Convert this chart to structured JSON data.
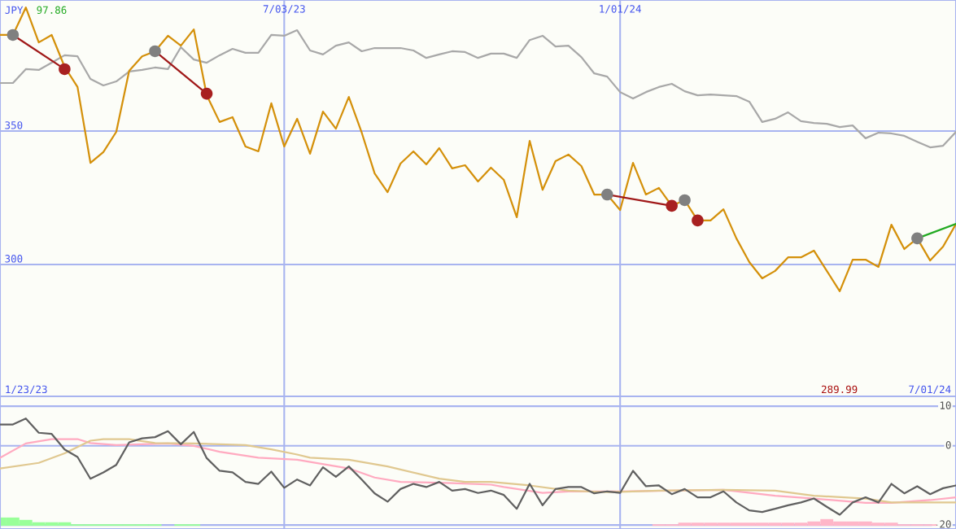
{
  "chart_data": [
    {
      "type": "line",
      "annotations": [
        "JPY",
        "97.86",
        "1/23/23",
        "7/01/24",
        "289.99"
      ],
      "x": [
        "2023-01-30",
        "2023-02-06",
        "2023-02-13",
        "2023-02-20",
        "2023-02-27",
        "2023-03-06",
        "2023-03-13",
        "2023-03-20",
        "2023-03-27",
        "2023-04-03",
        "2023-04-10",
        "2023-04-17",
        "2023-04-24",
        "2023-05-01",
        "2023-05-08",
        "2023-05-15",
        "2023-05-22",
        "2023-05-29",
        "2023-06-05",
        "2023-06-12",
        "2023-06-19",
        "2023-06-26",
        "2023-07-03",
        "2023-07-10",
        "2023-07-17",
        "2023-07-24",
        "2023-07-31",
        "2023-08-07",
        "2023-08-14",
        "2023-08-21",
        "2023-08-28",
        "2023-09-04",
        "2023-09-11",
        "2023-09-18",
        "2023-09-25",
        "2023-10-02",
        "2023-10-09",
        "2023-10-16",
        "2023-10-23",
        "2023-10-30",
        "2023-11-06",
        "2023-11-13",
        "2023-11-20",
        "2023-11-27",
        "2023-12-04",
        "2023-12-11",
        "2023-12-18",
        "2023-12-25",
        "2024-01-01",
        "2024-01-08",
        "2024-01-15",
        "2024-01-22",
        "2024-01-29",
        "2024-02-05",
        "2024-02-12",
        "2024-02-19",
        "2024-02-26",
        "2024-03-04",
        "2024-03-11",
        "2024-03-18",
        "2024-03-25",
        "2024-04-01",
        "2024-04-08",
        "2024-04-15",
        "2024-04-22",
        "2024-04-29",
        "2024-05-06",
        "2024-05-13",
        "2024-05-20",
        "2024-05-27",
        "2024-06-03",
        "2024-06-10",
        "2024-06-17",
        "2024-06-24",
        "2024-07-01"
      ],
      "series": [
        {
          "color": "#a8a8a8",
          "values": [
            368.0,
            368.0,
            373.2,
            372.9,
            375.6,
            378.4,
            378.0,
            369.5,
            367.1,
            368.6,
            372.3,
            372.9,
            373.8,
            373.2,
            381.4,
            376.8,
            375.6,
            378.4,
            380.8,
            379.3,
            379.3,
            386.0,
            385.7,
            387.8,
            380.2,
            378.7,
            382.0,
            383.2,
            379.9,
            381.1,
            381.1,
            381.1,
            380.2,
            377.4,
            378.7,
            379.9,
            379.6,
            377.4,
            379.0,
            379.0,
            377.4,
            384.1,
            385.7,
            381.7,
            382.0,
            377.7,
            371.6,
            370.4,
            364.6,
            362.2,
            364.6,
            366.5,
            367.7,
            364.9,
            363.4,
            363.7,
            363.4,
            363.1,
            361.0,
            353.4,
            354.6,
            357.0,
            353.7,
            353.0,
            352.7,
            351.5,
            352.1,
            347.3,
            349.4,
            349.1,
            348.2,
            346.0,
            343.9,
            344.5,
            349.7
          ]
        },
        {
          "color": "#d4900a",
          "values": [
            386.0,
            386.0,
            396.3,
            383.2,
            386.0,
            374.1,
            366.5,
            338.1,
            342.1,
            349.7,
            372.6,
            378.0,
            379.9,
            385.7,
            382.0,
            388.1,
            363.4,
            353.4,
            355.2,
            344.2,
            342.4,
            360.4,
            344.2,
            354.6,
            341.5,
            357.3,
            350.9,
            362.8,
            349.4,
            334.1,
            327.1,
            337.8,
            342.4,
            337.5,
            343.6,
            336.0,
            337.2,
            331.1,
            336.3,
            331.7,
            317.7,
            346.3,
            328.0,
            338.7,
            341.2,
            336.9,
            326.2,
            326.2,
            320.4,
            338.1,
            326.2,
            328.7,
            322.0,
            324.1,
            316.5,
            316.5,
            320.7,
            309.8,
            300.9,
            294.8,
            297.6,
            302.7,
            302.7,
            305.2,
            297.6,
            289.99,
            301.8,
            301.8,
            299.1,
            314.9,
            305.8,
            309.8,
            301.5,
            306.7,
            315.2
          ]
        },
        {
          "type": "line",
          "color": "#a01818",
          "x": [
            "2023-02-06",
            "2023-03-06"
          ],
          "values": [
            386.0,
            373.2
          ]
        },
        {
          "type": "line",
          "color": "#a01818",
          "x": [
            "2023-04-24",
            "2023-05-22"
          ],
          "values": [
            379.9,
            364.0
          ]
        },
        {
          "type": "line",
          "color": "#a01818",
          "x": [
            "2023-12-25",
            "2024-01-29"
          ],
          "values": [
            326.2,
            322.0
          ]
        },
        {
          "type": "line",
          "color": "#22aa22",
          "x": [
            "2024-06-10",
            "2024-07-01"
          ],
          "values": [
            309.8,
            315.2
          ]
        },
        {
          "type": "scatter",
          "marker": "circle",
          "color": "#808080",
          "x": [
            "2023-02-06",
            "2023-04-24",
            "2023-12-25",
            "2024-02-05",
            "2024-06-10"
          ],
          "values": [
            386.0,
            379.9,
            326.2,
            324.1,
            309.8
          ]
        },
        {
          "type": "scatter",
          "marker": "circle",
          "color": "#a82020",
          "x": [
            "2023-03-06",
            "2023-05-22",
            "2024-01-29",
            "2024-02-12"
          ],
          "values": [
            373.2,
            364.0,
            322.0,
            316.5
          ]
        }
      ],
      "xlim": [
        "2023-01-30",
        "2024-07-01"
      ],
      "xticks": [
        {
          "value": "2023-07-03",
          "label": "7/03/23"
        },
        {
          "value": "2024-01-01",
          "label": "1/01/24"
        }
      ],
      "ylim": [
        250.6,
        399.1
      ],
      "yticks": [
        350,
        300
      ],
      "grid": true,
      "marker": "none"
    },
    {
      "type": "line",
      "tick_labels": "y",
      "series": [
        {
          "type": "bar",
          "color": "#99ff99",
          "x": [
            "2023-01-30",
            "2023-02-06",
            "2023-02-13",
            "2023-02-20",
            "2023-02-27",
            "2023-03-06",
            "2023-03-13",
            "2023-03-20",
            "2023-03-27",
            "2023-04-03",
            "2023-04-10",
            "2023-04-17",
            "2023-04-24",
            "2023-05-08",
            "2023-05-15"
          ],
          "values": [
            2.1,
            2.1,
            1.5,
            0.9,
            0.9,
            0.9,
            0.4,
            0.4,
            0.4,
            0.4,
            0.4,
            0.4,
            0.4,
            0.4,
            0.4
          ],
          "base": [
            -20.2,
            -20.2,
            -20.2,
            -20.2,
            -20.2,
            -20.2,
            -20.2,
            -20.2,
            -20.2,
            -20.2,
            -20.2,
            -20.2,
            -20.2,
            -20.2,
            -20.2
          ]
        },
        {
          "type": "bar",
          "color": "#ffb6c8",
          "x": [
            "2024-01-22",
            "2024-01-29",
            "2024-02-05",
            "2024-02-12",
            "2024-02-19",
            "2024-02-26",
            "2024-03-04",
            "2024-03-11",
            "2024-03-18",
            "2024-03-25",
            "2024-04-01",
            "2024-04-08",
            "2024-04-15",
            "2024-04-22",
            "2024-04-29",
            "2024-05-06",
            "2024-05-13",
            "2024-05-20",
            "2024-05-27",
            "2024-06-03",
            "2024-06-10",
            "2024-06-17"
          ],
          "values": [
            0.4,
            0.4,
            0.8,
            0.8,
            0.8,
            0.8,
            0.8,
            0.8,
            0.8,
            0.8,
            0.8,
            0.8,
            1.1,
            1.7,
            1.1,
            1.1,
            1.1,
            0.8,
            0.8,
            0.4,
            0.4,
            0.4
          ],
          "base": [
            -20.2,
            -20.2,
            -20.2,
            -20.2,
            -20.2,
            -20.2,
            -20.2,
            -20.2,
            -20.2,
            -20.2,
            -20.2,
            -20.2,
            -20.2,
            -20.2,
            -20.2,
            -20.2,
            -20.2,
            -20.2,
            -20.2,
            -20.2,
            -20.2,
            -20.2
          ]
        },
        {
          "type": "line",
          "color": "#ffaac0",
          "x": [
            "2023-01-30",
            "2023-02-13",
            "2023-02-27",
            "2023-03-13",
            "2023-03-20",
            "2023-04-03",
            "2023-05-01",
            "2023-05-15",
            "2023-05-29",
            "2023-06-19",
            "2023-07-10",
            "2023-08-07",
            "2023-08-21",
            "2023-09-04",
            "2023-10-02",
            "2023-10-23",
            "2023-10-30",
            "2023-11-20",
            "2023-12-04",
            "2024-01-01",
            "2024-01-29",
            "2024-02-26",
            "2024-03-25",
            "2024-04-15",
            "2024-05-13",
            "2024-05-27",
            "2024-06-17",
            "2024-07-01"
          ],
          "values": [
            -3.0,
            0.6,
            1.7,
            1.7,
            0.7,
            0.2,
            0.6,
            0.0,
            -1.5,
            -3.0,
            -3.5,
            -5.7,
            -8.0,
            -9.1,
            -9.4,
            -9.8,
            -10.4,
            -11.9,
            -11.5,
            -11.5,
            -11.3,
            -11.1,
            -12.6,
            -13.3,
            -14.4,
            -14.4,
            -13.7,
            -13.0
          ]
        },
        {
          "type": "line",
          "color": "#e0c890",
          "x": [
            "2023-01-30",
            "2023-02-20",
            "2023-03-06",
            "2023-03-20",
            "2023-03-27",
            "2023-04-10",
            "2023-04-24",
            "2023-05-15",
            "2023-06-12",
            "2023-06-26",
            "2023-07-10",
            "2023-07-17",
            "2023-08-07",
            "2023-08-28",
            "2023-09-25",
            "2023-10-09",
            "2023-10-23",
            "2023-11-13",
            "2023-12-04",
            "2023-12-25",
            "2024-01-22",
            "2024-02-26",
            "2024-03-25",
            "2024-04-15",
            "2024-05-13",
            "2024-05-27",
            "2024-07-01"
          ],
          "values": [
            -5.7,
            -4.3,
            -1.9,
            1.3,
            1.7,
            1.7,
            0.7,
            0.6,
            0.2,
            -0.9,
            -2.2,
            -3.0,
            -3.5,
            -5.2,
            -8.3,
            -9.1,
            -9.1,
            -10.0,
            -11.3,
            -11.7,
            -11.3,
            -11.1,
            -11.3,
            -12.6,
            -13.3,
            -14.3,
            -14.3
          ]
        },
        {
          "color": "#606060",
          "values": [
            5.4,
            5.4,
            6.9,
            3.3,
            3.0,
            -0.9,
            -2.8,
            -8.3,
            -6.7,
            -4.8,
            0.9,
            1.9,
            2.2,
            3.7,
            0.4,
            3.5,
            -3.1,
            -6.3,
            -6.7,
            -9.1,
            -9.6,
            -6.5,
            -10.6,
            -8.5,
            -10.0,
            -5.4,
            -7.8,
            -5.2,
            -8.5,
            -12.0,
            -14.1,
            -10.9,
            -9.6,
            -10.4,
            -9.1,
            -11.3,
            -10.9,
            -11.9,
            -11.3,
            -12.4,
            -15.9,
            -9.6,
            -15.0,
            -10.9,
            -10.4,
            -10.4,
            -12.0,
            -11.5,
            -11.9,
            -6.3,
            -10.2,
            -10.0,
            -12.2,
            -10.9,
            -13.0,
            -13.0,
            -11.5,
            -14.3,
            -16.3,
            -16.7,
            -15.9,
            -15.0,
            -14.3,
            -13.3,
            -15.4,
            -17.4,
            -14.3,
            -13.0,
            -14.3,
            -9.6,
            -12.0,
            -10.2,
            -12.2,
            -10.7,
            -10.0
          ]
        }
      ],
      "x": [
        "2023-01-30",
        "2023-02-06",
        "2023-02-13",
        "2023-02-20",
        "2023-02-27",
        "2023-03-06",
        "2023-03-13",
        "2023-03-20",
        "2023-03-27",
        "2023-04-03",
        "2023-04-10",
        "2023-04-17",
        "2023-04-24",
        "2023-05-01",
        "2023-05-08",
        "2023-05-15",
        "2023-05-22",
        "2023-05-29",
        "2023-06-05",
        "2023-06-12",
        "2023-06-19",
        "2023-06-26",
        "2023-07-03",
        "2023-07-10",
        "2023-07-17",
        "2023-07-24",
        "2023-07-31",
        "2023-08-07",
        "2023-08-14",
        "2023-08-21",
        "2023-08-28",
        "2023-09-04",
        "2023-09-11",
        "2023-09-18",
        "2023-09-25",
        "2023-10-02",
        "2023-10-09",
        "2023-10-16",
        "2023-10-23",
        "2023-10-30",
        "2023-11-06",
        "2023-11-13",
        "2023-11-20",
        "2023-11-27",
        "2023-12-04",
        "2023-12-11",
        "2023-12-18",
        "2023-12-25",
        "2024-01-01",
        "2024-01-08",
        "2024-01-15",
        "2024-01-22",
        "2024-01-29",
        "2024-02-05",
        "2024-02-12",
        "2024-02-19",
        "2024-02-26",
        "2024-03-04",
        "2024-03-11",
        "2024-03-18",
        "2024-03-25",
        "2024-04-01",
        "2024-04-08",
        "2024-04-15",
        "2024-04-22",
        "2024-04-29",
        "2024-05-06",
        "2024-05-13",
        "2024-05-20",
        "2024-05-27",
        "2024-06-03",
        "2024-06-10",
        "2024-06-17",
        "2024-06-24",
        "2024-07-01"
      ],
      "xlim": [
        "2023-01-30",
        "2024-07-01"
      ],
      "xticks": [
        {
          "value": "2023-07-03",
          "label": null
        },
        {
          "value": "2024-01-01",
          "label": null
        }
      ],
      "ylim": [
        -21.0,
        12.5
      ],
      "yticks": [
        10,
        0,
        -20
      ],
      "grid": true,
      "marker": "none"
    }
  ]
}
